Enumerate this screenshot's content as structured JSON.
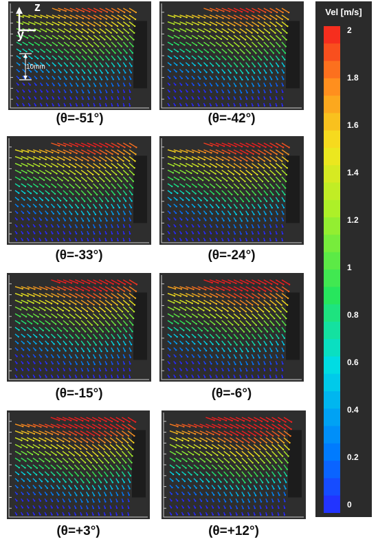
{
  "panels": [
    {
      "label": "(θ=-51°)",
      "angle_deg": -51
    },
    {
      "label": "(θ=-42°)",
      "angle_deg": -42
    },
    {
      "label": "(θ=-33°)",
      "angle_deg": -33
    },
    {
      "label": "(θ=-24°)",
      "angle_deg": -24
    },
    {
      "label": "(θ=-15°)",
      "angle_deg": -15
    },
    {
      "label": "(θ=-6°)",
      "angle_deg": -6
    },
    {
      "label": "(θ=+3°)",
      "angle_deg": 3
    },
    {
      "label": "(θ=+12°)",
      "angle_deg": 12
    }
  ],
  "axes_legend": {
    "z_label": "z",
    "y_label": "y",
    "scale_label": "10mm"
  },
  "colorbar": {
    "title": "Vel [m/s]",
    "min": 0,
    "max": 2,
    "ticks": [
      "2",
      "1.8",
      "1.6",
      "1.4",
      "1.2",
      "1",
      "0.8",
      "0.6",
      "0.4",
      "0.2",
      "0"
    ]
  }
}
